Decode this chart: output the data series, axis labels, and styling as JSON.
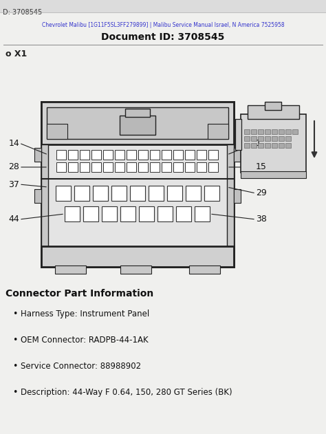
{
  "bg_color": "#e8e8e8",
  "page_bg": "#f0f0ee",
  "title_line1": "Chevrolet Malibu [1G11F5SL3FF279899] | Malibu Service Manual Israel, N America 7525958",
  "title_line2": "Document ID: 3708545",
  "tab_text": "D: 3708545",
  "connector_label": "o X1",
  "section_header": "Connector Part Information",
  "bullet_items": [
    "Harness Type: Instrument Panel",
    "OEM Connector: RADPB-44-1AK",
    "Service Connector: 88988902",
    "Description: 44-Way F 0.64, 150, 280 GT Series (BK)"
  ],
  "outline_color": "#222222",
  "pin_fill": "#ffffff",
  "pin_edge": "#333333",
  "connector_face": "#e0e0e0",
  "connector_dark": "#b0b0b0"
}
